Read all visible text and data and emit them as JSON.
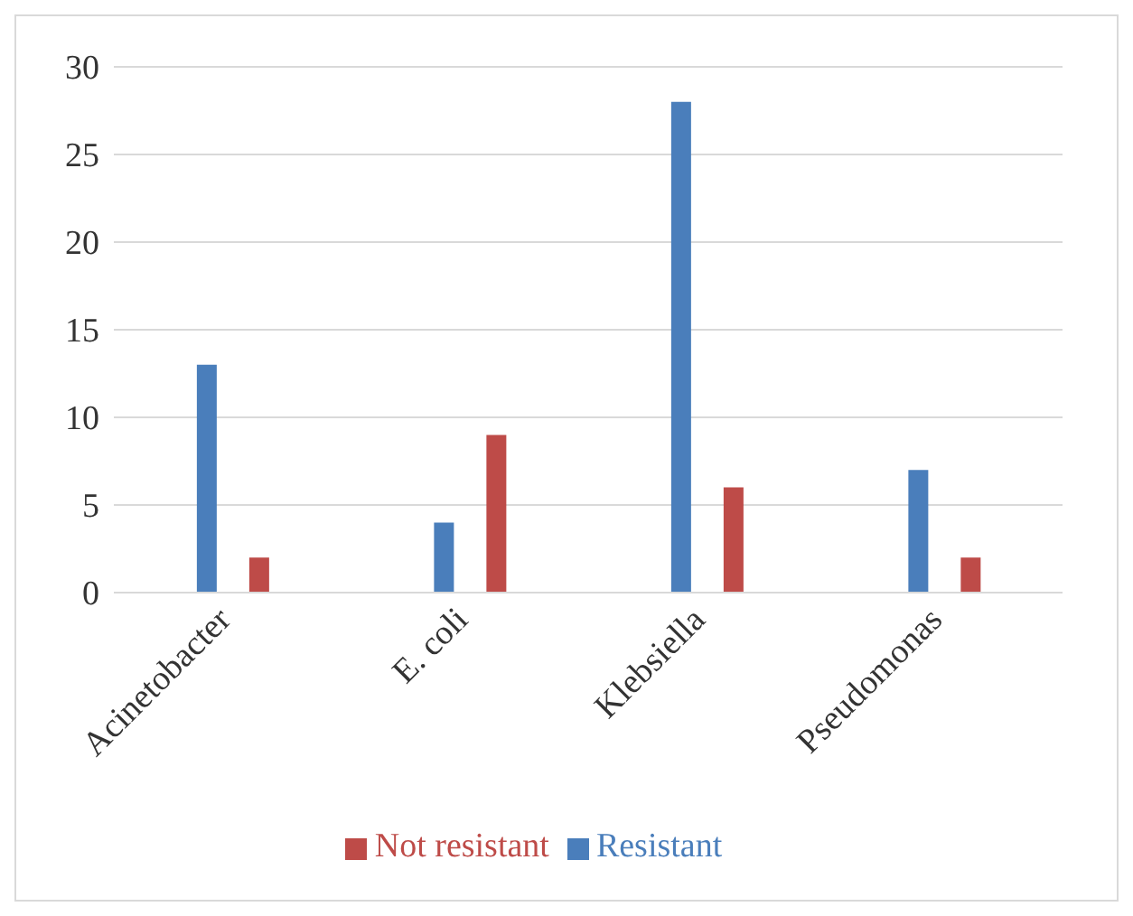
{
  "chart_data": {
    "type": "bar",
    "categories": [
      "Acinetobacter",
      "E. coli",
      "Klebsiella",
      "Pseudomonas"
    ],
    "series": [
      {
        "name": "Resistant",
        "color": "#4a7ebb",
        "values": [
          13,
          4,
          28,
          7
        ]
      },
      {
        "name": "Not resistant",
        "color": "#be4b48",
        "values": [
          2,
          9,
          6,
          2
        ]
      }
    ],
    "ylim": [
      0,
      30
    ],
    "yticks": [
      0,
      5,
      10,
      15,
      20,
      25,
      30
    ],
    "grid": "y",
    "legend": "bottom"
  }
}
